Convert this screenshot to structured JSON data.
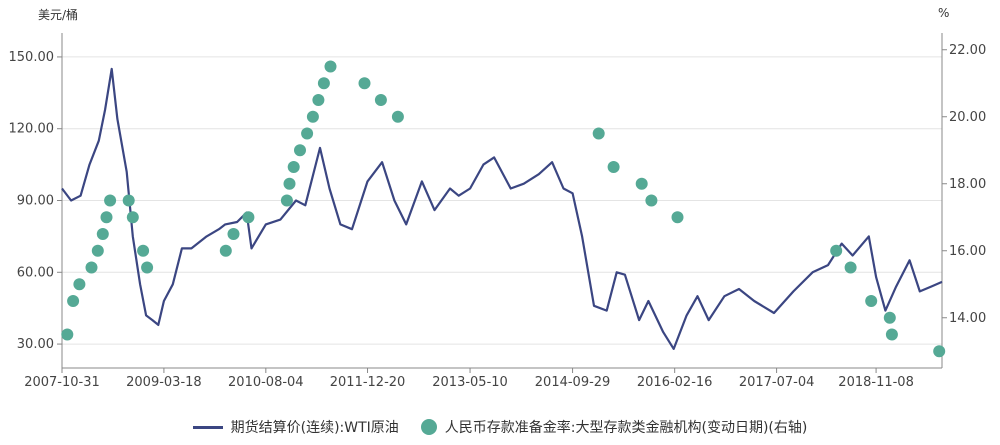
{
  "chart_data": {
    "type": "line+scatter",
    "title": "",
    "left_axis_unit": "美元/桶",
    "right_axis_unit": "%",
    "ylim_left": [
      20,
      160
    ],
    "ylim_right": [
      12.5,
      22.5
    ],
    "yticks_left": [
      "30.00",
      "60.00",
      "90.00",
      "120.00",
      "150.00"
    ],
    "yticks_right": [
      "14.00",
      "16.00",
      "18.00",
      "20.00",
      "22.00"
    ],
    "xlim": [
      "2007-10-31",
      "2019-09-30"
    ],
    "xticks": [
      "2007-10-31",
      "2009-03-18",
      "2010-08-04",
      "2011-12-20",
      "2013-05-10",
      "2014-09-29",
      "2016-02-16",
      "2017-07-04",
      "2018-11-08"
    ],
    "legend_position": "bottom-center",
    "series": [
      {
        "name": "期货结算价(连续):WTI原油",
        "type": "line",
        "axis": "left",
        "color": "#3b4682",
        "x": [
          "2007-10-31",
          "2007-12-15",
          "2008-01-31",
          "2008-03-15",
          "2008-04-30",
          "2008-05-31",
          "2008-07-03",
          "2008-07-31",
          "2008-09-15",
          "2008-10-15",
          "2008-11-20",
          "2008-12-20",
          "2009-01-20",
          "2009-02-18",
          "2009-03-18",
          "2009-05-01",
          "2009-06-15",
          "2009-08-01",
          "2009-10-15",
          "2009-12-15",
          "2010-01-15",
          "2010-03-15",
          "2010-05-01",
          "2010-05-25",
          "2010-08-04",
          "2010-10-15",
          "2010-12-31",
          "2011-02-15",
          "2011-04-29",
          "2011-06-15",
          "2011-08-08",
          "2011-10-04",
          "2011-12-20",
          "2012-03-01",
          "2012-05-01",
          "2012-06-28",
          "2012-09-14",
          "2012-11-15",
          "2013-01-31",
          "2013-03-15",
          "2013-05-10",
          "2013-07-15",
          "2013-09-06",
          "2013-11-27",
          "2014-01-31",
          "2014-04-15",
          "2014-06-20",
          "2014-08-15",
          "2014-09-29",
          "2014-11-15",
          "2015-01-13",
          "2015-03-17",
          "2015-05-05",
          "2015-06-15",
          "2015-08-24",
          "2015-10-09",
          "2015-12-21",
          "2016-02-11",
          "2016-04-15",
          "2016-06-08",
          "2016-08-02",
          "2016-10-19",
          "2016-12-30",
          "2017-03-15",
          "2017-06-21",
          "2017-09-25",
          "2017-12-29",
          "2018-03-15",
          "2018-05-22",
          "2018-07-15",
          "2018-10-03",
          "2018-11-08",
          "2018-12-24",
          "2019-02-15",
          "2019-04-23",
          "2019-06-12",
          "2019-08-07",
          "2019-09-30"
        ],
        "values": [
          95,
          90,
          92,
          105,
          115,
          128,
          145,
          124,
          102,
          75,
          55,
          42,
          40,
          38,
          48,
          55,
          70,
          70,
          75,
          78,
          80,
          81,
          85,
          70,
          80,
          82,
          90,
          88,
          112,
          95,
          80,
          78,
          98,
          106,
          90,
          80,
          98,
          86,
          95,
          92,
          95,
          105,
          108,
          95,
          97,
          101,
          106,
          95,
          93,
          75,
          46,
          44,
          60,
          59,
          40,
          48,
          35,
          28,
          42,
          50,
          40,
          50,
          53,
          48,
          43,
          52,
          60,
          63,
          72,
          67,
          75,
          58,
          44,
          54,
          65,
          52,
          54,
          56
        ]
      },
      {
        "name": "人民币存款准备金率:大型存款类金融机构(变动日期)(右轴)",
        "type": "scatter",
        "axis": "right",
        "color": "#55a995",
        "x": [
          "2007-11-26",
          "2007-12-25",
          "2008-01-25",
          "2008-03-25",
          "2008-04-25",
          "2008-05-20",
          "2008-06-07",
          "2008-06-25",
          "2008-09-25",
          "2008-10-15",
          "2008-12-05",
          "2008-12-25",
          "2010-01-18",
          "2010-02-25",
          "2010-05-10",
          "2010-11-16",
          "2010-11-29",
          "2010-12-20",
          "2011-01-20",
          "2011-02-24",
          "2011-03-25",
          "2011-04-21",
          "2011-05-18",
          "2011-06-20",
          "2011-12-05",
          "2012-02-24",
          "2012-05-18",
          "2015-02-05",
          "2015-04-20",
          "2015-09-06",
          "2015-10-24",
          "2016-03-01",
          "2018-04-25",
          "2018-07-05",
          "2018-10-15",
          "2019-01-15",
          "2019-01-25",
          "2019-09-16"
        ],
        "values": [
          13.5,
          14.5,
          15.0,
          15.5,
          16.0,
          16.5,
          17.0,
          17.5,
          17.5,
          17.0,
          16.0,
          15.5,
          16.0,
          16.5,
          17.0,
          17.5,
          18.0,
          18.5,
          19.0,
          19.5,
          20.0,
          20.5,
          21.0,
          21.5,
          21.0,
          20.5,
          20.0,
          19.5,
          18.5,
          18.0,
          17.5,
          17.0,
          16.0,
          15.5,
          14.5,
          14.0,
          13.5,
          13.0
        ]
      }
    ]
  }
}
